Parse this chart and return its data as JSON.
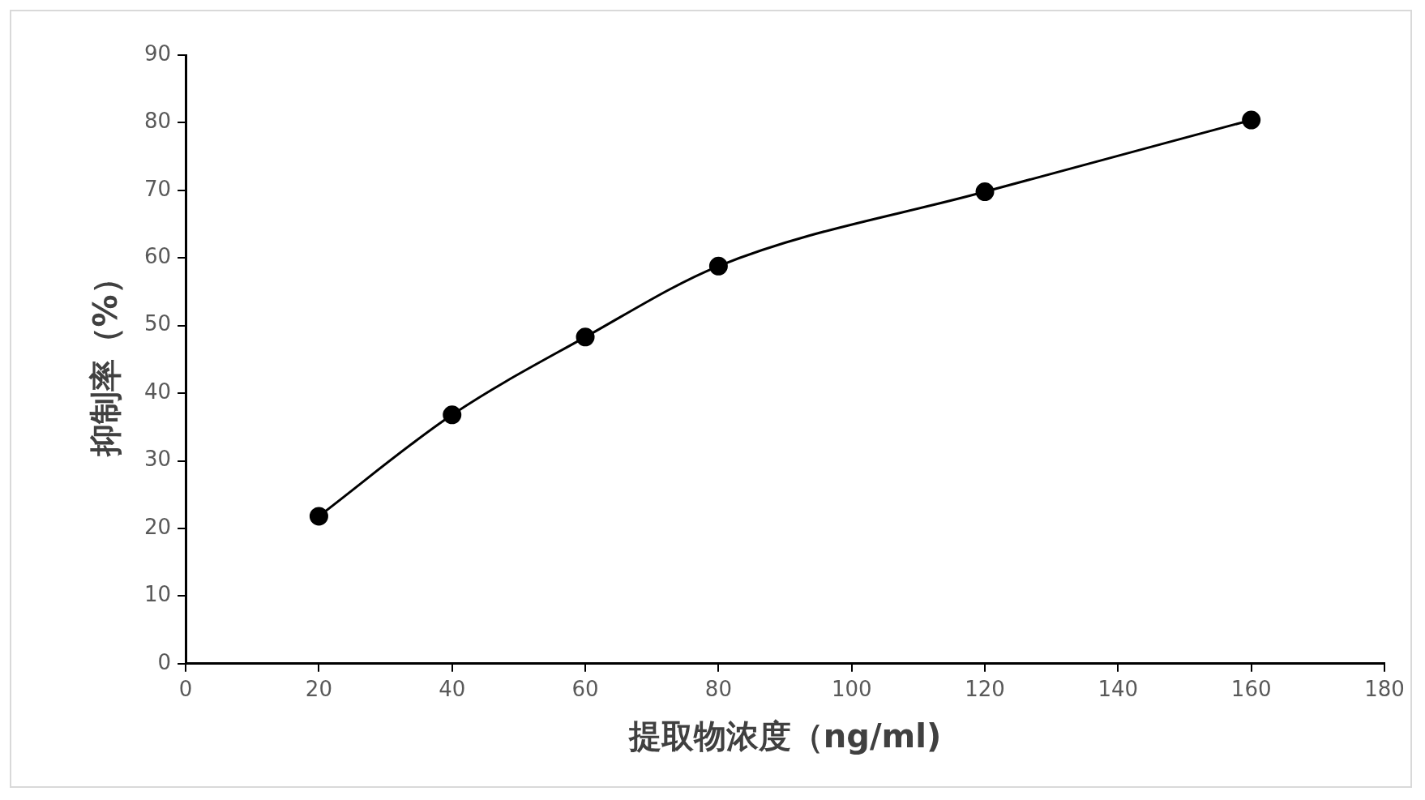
{
  "chart_data": {
    "type": "line",
    "xlabel": "提取物浓度（ng/ml)",
    "ylabel": "抑制率（%）",
    "x": [
      20,
      40,
      60,
      80,
      120,
      160
    ],
    "series": [
      {
        "color": "#000000",
        "values": [
          21.8,
          36.8,
          48.3,
          58.8,
          69.8,
          80.4
        ]
      }
    ],
    "xlim": [
      0,
      180
    ],
    "xticks": [
      0,
      20,
      40,
      60,
      80,
      100,
      120,
      140,
      160,
      180
    ],
    "ylim": [
      0,
      90
    ],
    "yticks": [
      0,
      10,
      20,
      30,
      40,
      50,
      60,
      70,
      80,
      90
    ],
    "grid": false,
    "legend": false,
    "marker": "circle",
    "line_style": "solid"
  }
}
